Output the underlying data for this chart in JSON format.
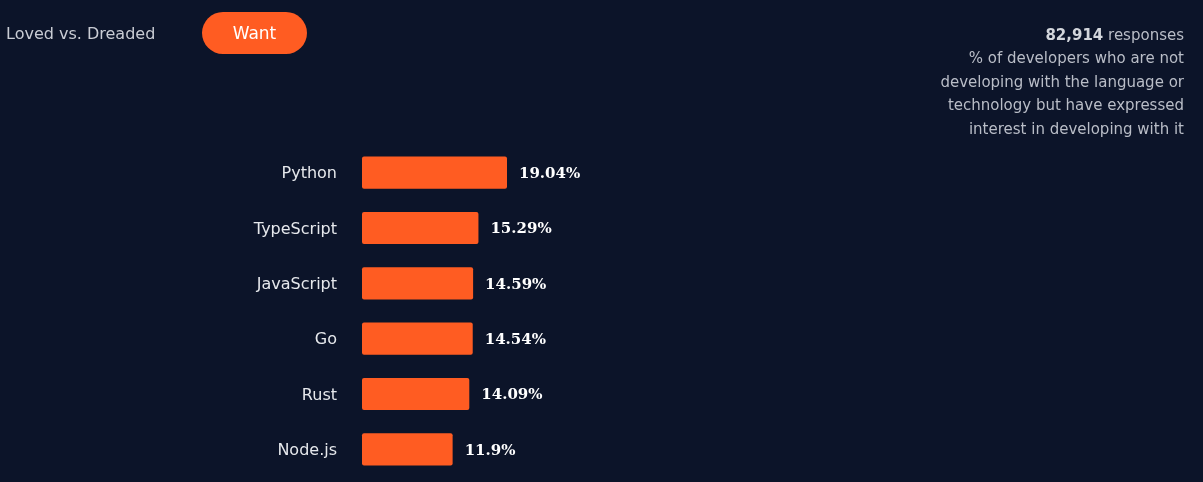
{
  "chart_data": {
    "type": "bar",
    "orientation": "horizontal",
    "subtitle": "% of developers who are not developing with the language or technology but have expressed interest in developing with it",
    "annotations": [
      "Loved vs. Dreaded",
      "Want",
      "82,914 responses"
    ],
    "categories": [
      "Python",
      "TypeScript",
      "JavaScript",
      "Go",
      "Rust",
      "Node.js"
    ],
    "values": [
      19.04,
      15.29,
      14.59,
      14.54,
      14.09,
      11.9
    ],
    "value_labels": [
      "19.04%",
      "15.29%",
      "14.59%",
      "14.54%",
      "14.09%",
      "11.9%"
    ],
    "color": "#ff5c22"
  }
}
